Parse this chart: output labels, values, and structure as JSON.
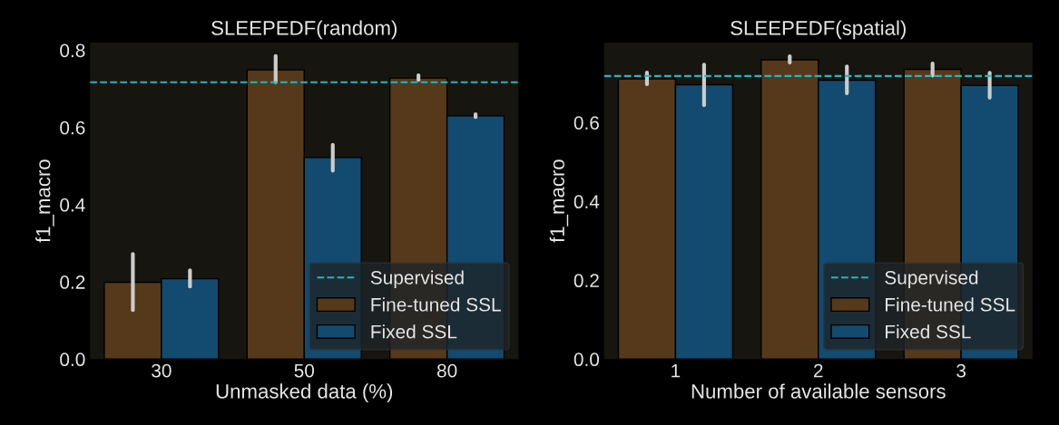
{
  "chart_data": [
    {
      "type": "bar",
      "title": "SLEEPEDF(random)",
      "xlabel": "Unmasked data (%)",
      "ylabel": "f1_macro",
      "categories": [
        "30",
        "50",
        "80"
      ],
      "series": [
        {
          "name": "Fine-tuned SSL",
          "color": "#56391a",
          "values": [
            0.199,
            0.749,
            0.728
          ],
          "errors": [
            [
              0.127,
              0.272
            ],
            [
              0.717,
              0.785
            ],
            [
              0.723,
              0.735
            ]
          ]
        },
        {
          "name": "Fixed SSL",
          "color": "#134a70",
          "values": [
            0.208,
            0.522,
            0.63
          ],
          "errors": [
            [
              0.188,
              0.23
            ],
            [
              0.488,
              0.555
            ],
            [
              0.627,
              0.634
            ]
          ]
        }
      ],
      "ref_lines": [
        {
          "axis": "y",
          "value": 0.717,
          "label": "Supervised",
          "color": "#1fb8c4",
          "line_style": "dashed"
        }
      ],
      "ylim": [
        0,
        0.82
      ],
      "yticks": [
        {
          "value": 0,
          "label": "0.0"
        },
        0.2,
        0.4,
        0.6,
        0.8
      ],
      "grid": false,
      "legend": "bottom right"
    },
    {
      "type": "bar",
      "title": "SLEEPEDF(spatial)",
      "xlabel": "Number of available sensors",
      "ylabel": "f1_macro",
      "categories": [
        "1",
        "2",
        "3"
      ],
      "series": [
        {
          "name": "Fine-tuned SSL",
          "color": "#56391a",
          "values": [
            0.711,
            0.759,
            0.735
          ],
          "errors": [
            [
              0.697,
              0.727
            ],
            [
              0.752,
              0.768
            ],
            [
              0.719,
              0.75
            ]
          ]
        },
        {
          "name": "Fixed SSL",
          "color": "#134a70",
          "values": [
            0.696,
            0.707,
            0.694
          ],
          "errors": [
            [
              0.644,
              0.747
            ],
            [
              0.674,
              0.742
            ],
            [
              0.663,
              0.726
            ]
          ]
        }
      ],
      "ref_lines": [
        {
          "axis": "y",
          "value": 0.718,
          "label": "Supervised",
          "color": "#1fb8c4",
          "line_style": "dashed"
        }
      ],
      "ylim": [
        0,
        0.803
      ],
      "yticks": [
        {
          "value": 0,
          "label": "0.0"
        },
        0.2,
        0.4,
        0.6
      ],
      "grid": false,
      "legend": "bottom right"
    }
  ]
}
